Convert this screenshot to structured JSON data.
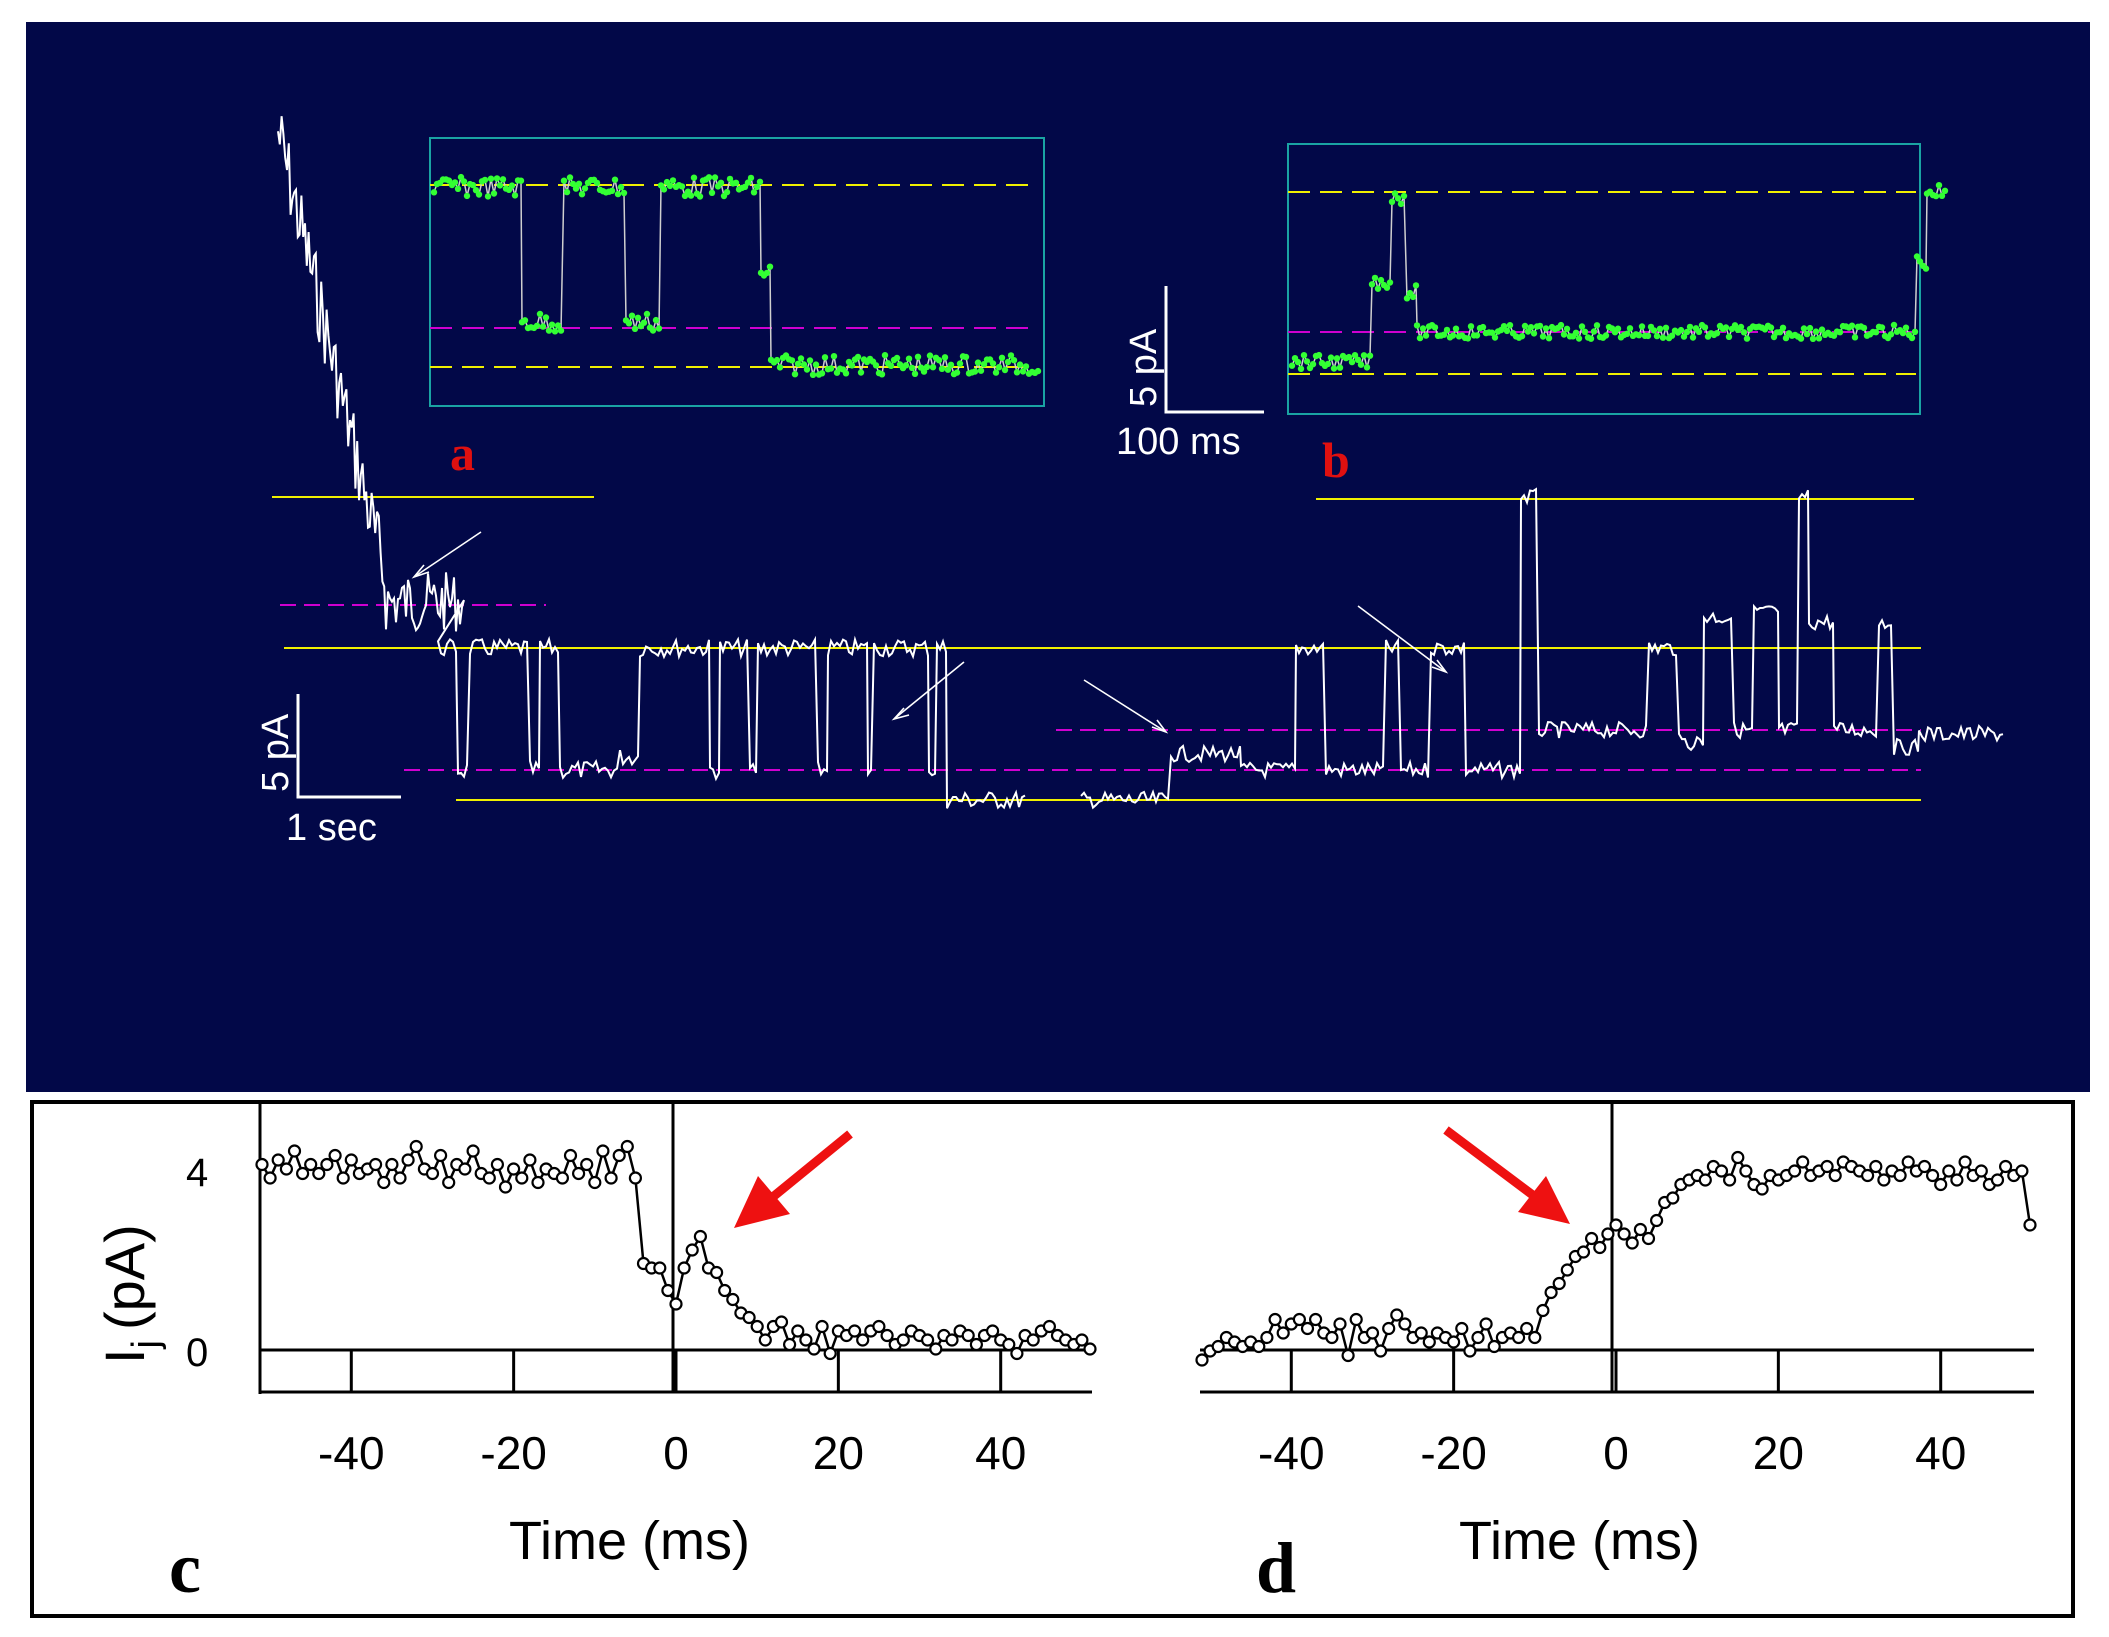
{
  "panel_labels": {
    "a": "a",
    "b": "b",
    "c": "c",
    "d": "d"
  },
  "scale_bars": {
    "main_current": "5 pA",
    "main_time": "1 sec",
    "inset_current": "5 pA",
    "inset_time": "100 ms"
  },
  "colors": {
    "background_top": "#020848",
    "trace": "#ffffff",
    "open_level": "#f0f000",
    "residual_level": "#d000d0",
    "inset_points": "#33ff33",
    "inset_frame": "#1aa3a3",
    "arrow_red": "#ee1111"
  },
  "chart_data": [
    {
      "type": "line",
      "panel": "main",
      "description_levels": [
        "open",
        "residual",
        "closed"
      ],
      "ylabel_scale": "5 pA",
      "xlabel_scale": "1 sec"
    },
    {
      "type": "scatter",
      "panel": "a",
      "levels": [
        "upper",
        "residual",
        "lower"
      ]
    },
    {
      "type": "scatter",
      "panel": "b",
      "levels": [
        "upper",
        "residual",
        "lower"
      ]
    },
    {
      "type": "line",
      "panel": "c",
      "ylabel": "I",
      "ylabel_sub": "j",
      "ylabel_unit": "(pA)",
      "xlabel": "Time (ms)",
      "xticks": [
        -40,
        -20,
        0,
        20,
        40
      ],
      "yticks": [
        0,
        4
      ],
      "xlim": [
        -51,
        51
      ],
      "ylim": [
        -1,
        5
      ],
      "x": [
        -51,
        -50,
        -49,
        -48,
        -47,
        -46,
        -45,
        -44,
        -43,
        -42,
        -41,
        -40,
        -39,
        -38,
        -37,
        -36,
        -35,
        -34,
        -33,
        -32,
        -31,
        -30,
        -29,
        -28,
        -27,
        -26,
        -25,
        -24,
        -23,
        -22,
        -21,
        -20,
        -19,
        -18,
        -17,
        -16,
        -15,
        -14,
        -13,
        -12,
        -11,
        -10,
        -9,
        -8,
        -7,
        -6,
        -5,
        -4,
        -3,
        -2,
        -1,
        0,
        1,
        2,
        3,
        4,
        5,
        6,
        7,
        8,
        9,
        10,
        11,
        12,
        13,
        14,
        15,
        16,
        17,
        18,
        19,
        20,
        21,
        22,
        23,
        24,
        25,
        26,
        27,
        28,
        29,
        30,
        31,
        32,
        33,
        34,
        35,
        36,
        37,
        38,
        39,
        40,
        41,
        42,
        43,
        44,
        45,
        46,
        47,
        48,
        49,
        50,
        51
      ],
      "y": [
        3.9,
        3.6,
        4.0,
        3.8,
        4.2,
        3.7,
        3.9,
        3.7,
        3.9,
        4.1,
        3.6,
        4.0,
        3.7,
        3.8,
        3.9,
        3.5,
        3.9,
        3.6,
        4.0,
        4.3,
        3.8,
        3.7,
        4.1,
        3.5,
        3.9,
        3.8,
        4.2,
        3.7,
        3.6,
        3.9,
        3.4,
        3.8,
        3.6,
        4.0,
        3.5,
        3.8,
        3.7,
        3.6,
        4.1,
        3.7,
        3.9,
        3.5,
        4.2,
        3.6,
        4.1,
        4.3,
        3.6,
        1.7,
        1.6,
        1.6,
        1.1,
        0.8,
        1.6,
        2.0,
        2.3,
        1.6,
        1.5,
        1.1,
        0.9,
        0.6,
        0.5,
        0.3,
        0.0,
        0.3,
        0.4,
        -0.1,
        0.2,
        0.0,
        -0.2,
        0.3,
        -0.3,
        0.2,
        0.1,
        0.2,
        0.0,
        0.2,
        0.3,
        0.1,
        -0.1,
        0.0,
        0.2,
        0.1,
        0.0,
        -0.2,
        0.1,
        0.0,
        0.2,
        0.1,
        -0.1,
        0.1,
        0.2,
        0.0,
        -0.1,
        -0.3,
        0.1,
        0.0,
        0.2,
        0.3,
        0.1,
        0.0,
        -0.1,
        0.0,
        -0.2
      ]
    },
    {
      "type": "line",
      "panel": "d",
      "xlabel": "Time (ms)",
      "xticks": [
        -40,
        -20,
        0,
        20,
        40
      ],
      "xlim": [
        -51,
        51
      ],
      "ylim": [
        -1,
        5
      ],
      "x": [
        -51,
        -50,
        -49,
        -48,
        -47,
        -46,
        -45,
        -44,
        -43,
        -42,
        -41,
        -40,
        -39,
        -38,
        -37,
        -36,
        -35,
        -34,
        -33,
        -32,
        -31,
        -30,
        -29,
        -28,
        -27,
        -26,
        -25,
        -24,
        -23,
        -22,
        -21,
        -20,
        -19,
        -18,
        -17,
        -16,
        -15,
        -14,
        -13,
        -12,
        -11,
        -10,
        -9,
        -8,
        -7,
        -6,
        -5,
        -4,
        -3,
        -2,
        -1,
        0,
        1,
        2,
        3,
        4,
        5,
        6,
        7,
        8,
        9,
        10,
        11,
        12,
        13,
        14,
        15,
        16,
        17,
        18,
        19,
        20,
        21,
        22,
        23,
        24,
        25,
        26,
        27,
        28,
        29,
        30,
        31,
        32,
        33,
        34,
        35,
        36,
        37,
        38,
        39,
        40,
        41,
        42,
        43,
        44,
        45,
        46,
        47,
        48,
        49,
        50,
        51
      ],
      "y": [
        -0.4,
        -0.2,
        -0.1,
        0.1,
        0.0,
        -0.1,
        0.0,
        -0.1,
        0.1,
        0.5,
        0.2,
        0.4,
        0.5,
        0.3,
        0.5,
        0.2,
        0.1,
        0.4,
        -0.3,
        0.5,
        0.1,
        0.2,
        -0.2,
        0.3,
        0.6,
        0.4,
        0.1,
        0.2,
        0.0,
        0.2,
        0.1,
        0.0,
        0.3,
        -0.2,
        0.1,
        0.4,
        -0.1,
        0.1,
        0.2,
        0.1,
        0.3,
        0.1,
        0.7,
        1.1,
        1.3,
        1.6,
        1.9,
        2.0,
        2.3,
        2.1,
        2.4,
        2.6,
        2.4,
        2.2,
        2.5,
        2.3,
        2.7,
        3.1,
        3.2,
        3.5,
        3.6,
        3.7,
        3.6,
        3.9,
        3.8,
        3.6,
        4.1,
        3.8,
        3.5,
        3.4,
        3.7,
        3.6,
        3.7,
        3.8,
        4.0,
        3.7,
        3.8,
        3.9,
        3.7,
        4.0,
        3.9,
        3.8,
        3.7,
        3.9,
        3.6,
        3.8,
        3.7,
        4.0,
        3.8,
        3.9,
        3.7,
        3.5,
        3.8,
        3.6,
        4.0,
        3.7,
        3.8,
        3.5,
        3.6,
        3.9,
        3.7,
        3.8,
        2.6
      ]
    }
  ]
}
